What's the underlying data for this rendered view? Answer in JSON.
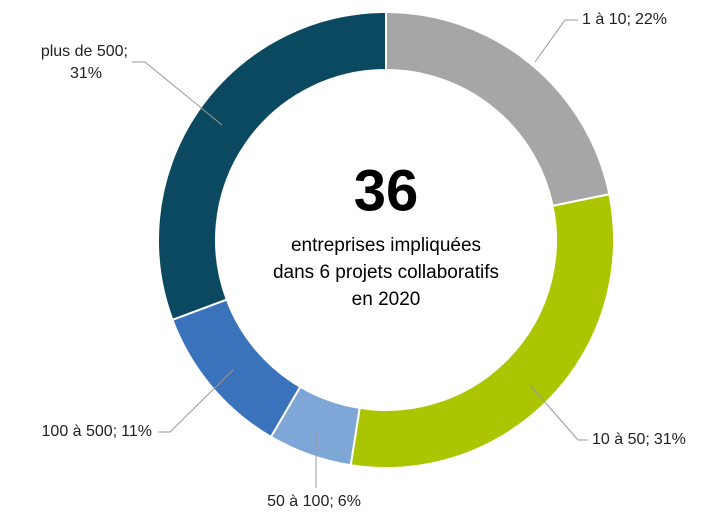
{
  "chart_data": {
    "type": "donut",
    "categories": [
      "1 à 10",
      "10 à 50",
      "50 à 100",
      "100 à 500",
      "plus de 500"
    ],
    "values": [
      22,
      31,
      6,
      11,
      31
    ],
    "value_labels": [
      "22%",
      "31%",
      "6%",
      "11%",
      "31%"
    ],
    "colors": [
      "#a6a6a6",
      "#abc500",
      "#7ea6d6",
      "#3a72bc",
      "#0b4960"
    ],
    "center_value": 36,
    "center_text": [
      "entreprises impliquées",
      "dans 6 projets collaboratifs",
      "en 2020"
    ]
  }
}
